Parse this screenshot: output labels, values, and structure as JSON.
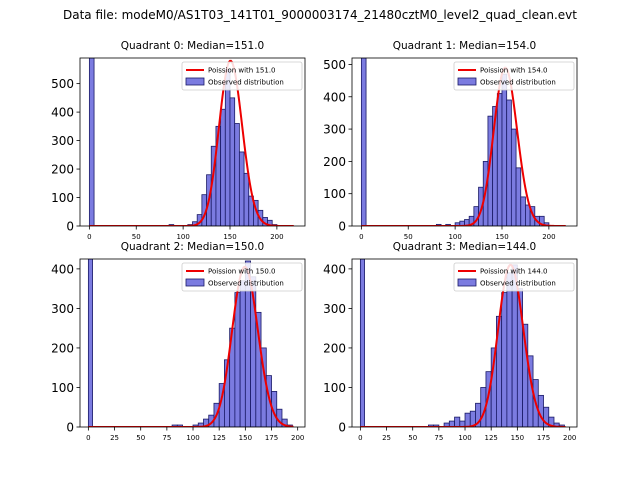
{
  "figure": {
    "title": "Data file: modeM0/AS1T03_141T01_9000003174_21480cztM0_level2_quad_clean.evt"
  },
  "colors": {
    "bar_fill": "#7b7be0",
    "bar_edge": "#1a1a66",
    "poisson_line": "#ee0000",
    "axis": "#000000",
    "background": "#ffffff"
  },
  "chart_data": [
    {
      "type": "bar",
      "title": "Quadrant 0: Median=151.0",
      "xlabel": "",
      "ylabel": "",
      "xlim": [
        -10,
        230
      ],
      "ylim": [
        0,
        590
      ],
      "xticks": [
        0,
        50,
        100,
        150,
        200
      ],
      "yticks": [
        0,
        100,
        200,
        300,
        400,
        500
      ],
      "bin_width": 5,
      "zero_bin": {
        "x": [
          0,
          5
        ],
        "count": 590
      },
      "bins": [
        [
          85,
          90,
          5
        ],
        [
          105,
          110,
          5
        ],
        [
          110,
          115,
          15
        ],
        [
          115,
          120,
          40
        ],
        [
          120,
          125,
          110
        ],
        [
          125,
          130,
          180
        ],
        [
          130,
          135,
          280
        ],
        [
          135,
          140,
          350
        ],
        [
          140,
          145,
          410
        ],
        [
          145,
          150,
          550
        ],
        [
          150,
          155,
          450
        ],
        [
          155,
          160,
          360
        ],
        [
          160,
          165,
          260
        ],
        [
          165,
          170,
          185
        ],
        [
          170,
          175,
          105
        ],
        [
          175,
          180,
          90
        ],
        [
          180,
          185,
          55
        ],
        [
          185,
          190,
          30
        ],
        [
          190,
          195,
          20
        ],
        [
          195,
          200,
          5
        ]
      ],
      "poisson": {
        "mean": 151.0,
        "peak": 580,
        "x_range": [
          0,
          218
        ]
      },
      "legend": {
        "position": "top-right",
        "entries": [
          "Poission with 151.0",
          "Observed distribution"
        ]
      }
    },
    {
      "type": "bar",
      "title": "Quadrant 1: Median=154.0",
      "xlabel": "",
      "ylabel": "",
      "xlim": [
        -10,
        230
      ],
      "ylim": [
        0,
        520
      ],
      "xticks": [
        0,
        50,
        100,
        150,
        200
      ],
      "yticks": [
        0,
        100,
        200,
        300,
        400,
        500
      ],
      "bin_width": 5,
      "zero_bin": {
        "x": [
          0,
          5
        ],
        "count": 520
      },
      "bins": [
        [
          80,
          85,
          5
        ],
        [
          90,
          95,
          5
        ],
        [
          100,
          105,
          10
        ],
        [
          105,
          110,
          15
        ],
        [
          110,
          115,
          20
        ],
        [
          115,
          120,
          30
        ],
        [
          120,
          125,
          60
        ],
        [
          125,
          130,
          120
        ],
        [
          130,
          135,
          200
        ],
        [
          135,
          140,
          340
        ],
        [
          140,
          145,
          370
        ],
        [
          145,
          150,
          410
        ],
        [
          150,
          155,
          470
        ],
        [
          155,
          160,
          390
        ],
        [
          160,
          165,
          300
        ],
        [
          165,
          170,
          180
        ],
        [
          170,
          175,
          90
        ],
        [
          175,
          180,
          65
        ],
        [
          180,
          185,
          60
        ],
        [
          185,
          190,
          30
        ],
        [
          190,
          195,
          30
        ],
        [
          195,
          200,
          10
        ]
      ],
      "poisson": {
        "mean": 154.0,
        "peak": 490,
        "x_range": [
          0,
          218
        ]
      },
      "legend": {
        "position": "top-right",
        "entries": [
          "Poission with 154.0",
          "Observed distribution"
        ]
      }
    },
    {
      "type": "bar",
      "title": "Quadrant 2: Median=150.0",
      "xlabel": "",
      "ylabel": "",
      "xlim": [
        -8,
        207
      ],
      "ylim": [
        0,
        425
      ],
      "xticks": [
        0,
        25,
        50,
        75,
        100,
        125,
        150,
        175,
        200
      ],
      "yticks": [
        0,
        100,
        200,
        300,
        400
      ],
      "bin_width": 5,
      "zero_bin": {
        "x": [
          0,
          4
        ],
        "count": 425
      },
      "bins": [
        [
          80,
          85,
          5
        ],
        [
          85,
          90,
          5
        ],
        [
          100,
          105,
          5
        ],
        [
          105,
          110,
          10
        ],
        [
          110,
          115,
          20
        ],
        [
          115,
          120,
          30
        ],
        [
          120,
          125,
          60
        ],
        [
          125,
          130,
          110
        ],
        [
          130,
          135,
          170
        ],
        [
          135,
          140,
          250
        ],
        [
          140,
          145,
          340
        ],
        [
          145,
          150,
          370
        ],
        [
          150,
          155,
          420
        ],
        [
          155,
          160,
          380
        ],
        [
          160,
          165,
          290
        ],
        [
          165,
          170,
          200
        ],
        [
          170,
          175,
          130
        ],
        [
          175,
          180,
          90
        ],
        [
          180,
          185,
          45
        ],
        [
          185,
          190,
          20
        ],
        [
          190,
          195,
          5
        ]
      ],
      "poisson": {
        "mean": 150.0,
        "peak": 405,
        "x_range": [
          0,
          196
        ]
      },
      "legend": {
        "position": "top-right",
        "entries": [
          "Poission with 150.0",
          "Observed distribution"
        ]
      }
    },
    {
      "type": "bar",
      "title": "Quadrant 3: Median=144.0",
      "xlabel": "",
      "ylabel": "",
      "xlim": [
        -8,
        207
      ],
      "ylim": [
        0,
        425
      ],
      "xticks": [
        0,
        25,
        50,
        75,
        100,
        125,
        150,
        175,
        200
      ],
      "yticks": [
        0,
        100,
        200,
        300,
        400
      ],
      "bin_width": 5,
      "zero_bin": {
        "x": [
          0,
          4
        ],
        "count": 425
      },
      "bins": [
        [
          65,
          70,
          5
        ],
        [
          70,
          75,
          5
        ],
        [
          80,
          85,
          10
        ],
        [
          85,
          90,
          15
        ],
        [
          90,
          95,
          25
        ],
        [
          95,
          100,
          15
        ],
        [
          100,
          105,
          35
        ],
        [
          105,
          110,
          40
        ],
        [
          110,
          115,
          60
        ],
        [
          115,
          120,
          100
        ],
        [
          120,
          125,
          140
        ],
        [
          125,
          130,
          200
        ],
        [
          130,
          135,
          280
        ],
        [
          135,
          140,
          340
        ],
        [
          140,
          145,
          390
        ],
        [
          145,
          150,
          410
        ],
        [
          150,
          155,
          350
        ],
        [
          155,
          160,
          260
        ],
        [
          160,
          165,
          180
        ],
        [
          165,
          170,
          120
        ],
        [
          170,
          175,
          80
        ],
        [
          175,
          180,
          50
        ],
        [
          180,
          185,
          25
        ],
        [
          185,
          190,
          10
        ],
        [
          190,
          195,
          5
        ]
      ],
      "poisson": {
        "mean": 144.0,
        "peak": 410,
        "x_range": [
          0,
          196
        ]
      },
      "legend": {
        "position": "top-right",
        "entries": [
          "Poission with 144.0",
          "Observed distribution"
        ]
      }
    }
  ]
}
